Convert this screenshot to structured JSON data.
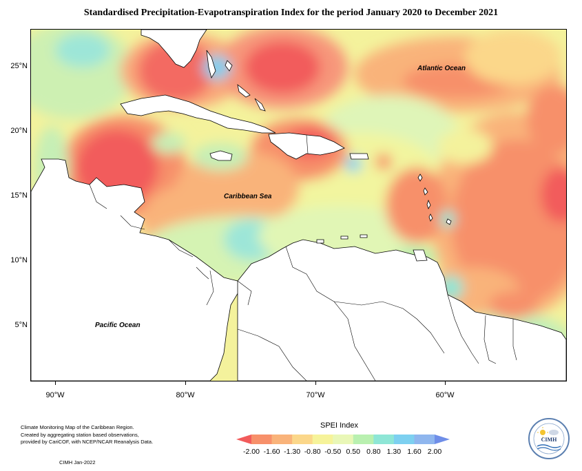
{
  "title": "Standardised Precipitation-Evapotranspiration Index for the period January 2020 to December 2021",
  "map": {
    "latitude_labels": [
      "25°N",
      "20°N",
      "15°N",
      "10°N",
      "5°N"
    ],
    "longitude_labels": [
      "90°W",
      "80°W",
      "70°W",
      "60°W"
    ],
    "labels": {
      "atlantic": "Atlantic Ocean",
      "caribbean": "Caribbean Sea",
      "pacific": "Pacific Ocean"
    }
  },
  "legend": {
    "title": "SPEI Index",
    "values": [
      "-2.00",
      "-1.60",
      "-1.30",
      "-0.80",
      "-0.50",
      "0.50",
      "0.80",
      "1.30",
      "1.60",
      "2.00"
    ],
    "colors": [
      "#f25b5b",
      "#f7906a",
      "#f9b37a",
      "#fbd78a",
      "#f6f39a",
      "#e9f7b7",
      "#b9f0b0",
      "#8ee6d6",
      "#7dd0f0",
      "#8fb6ee",
      "#6f8ee8"
    ]
  },
  "footer": {
    "note_lines": [
      "Climate Monitoring Map of the Caribbean Region.",
      "Created by aggregating station based observations,",
      "provided by CariCOF, with NCEP/NCAR Reanalysis Data."
    ],
    "credit": "CIMH Jan-2022"
  },
  "logo": {
    "text": "CIMH"
  }
}
